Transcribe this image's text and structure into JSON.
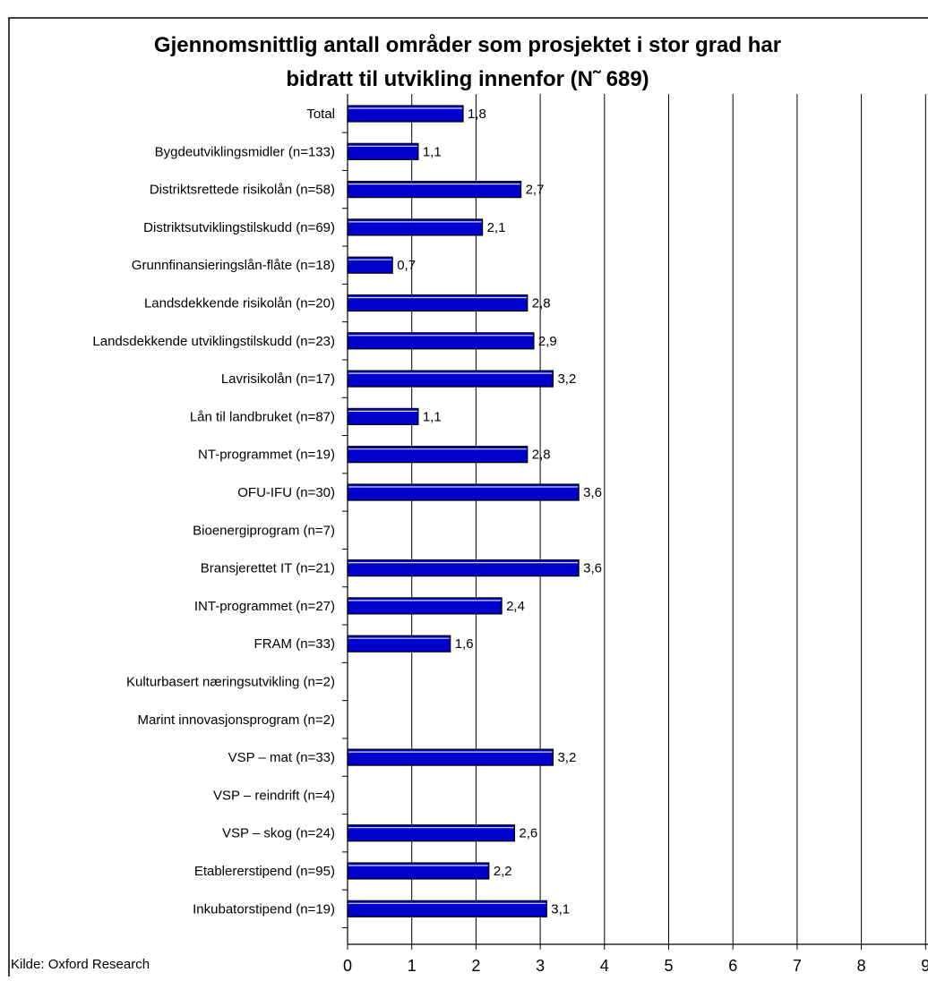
{
  "chart_data": {
    "type": "bar",
    "orientation": "horizontal",
    "title_line1": "Gjennomsnittlig antall områder som prosjektet i stor grad har",
    "title_line2": "bidratt til utvikling innenfor (N˜ 689)",
    "source": "Kilde: Oxford Research",
    "xlim": [
      0,
      9
    ],
    "xticks": [
      "0",
      "1",
      "2",
      "3",
      "4",
      "5",
      "6",
      "7",
      "8",
      "9"
    ],
    "grid": "vertical gridlines",
    "legend": "none",
    "bar_color": "#0000cc",
    "categories": [
      "Total",
      "Bygdeutviklingsmidler (n=133)",
      "Distriktsrettede risikolån (n=58)",
      "Distriktsutviklingstilskudd (n=69)",
      "Grunnfinansieringslån-flåte (n=18)",
      "Landsdekkende risikolån (n=20)",
      "Landsdekkende utviklingstilskudd (n=23)",
      "Lavrisikolån (n=17)",
      "Lån til landbruket (n=87)",
      "NT-programmet (n=19)",
      "OFU-IFU (n=30)",
      "Bioenergiprogram (n=7)",
      "Bransjerettet IT (n=21)",
      "INT-programmet (n=27)",
      "FRAM (n=33)",
      "Kulturbasert næringsutvikling (n=2)",
      "Marint innovasjonsprogram (n=2)",
      "VSP – mat (n=33)",
      "VSP – reindrift (n=4)",
      "VSP – skog (n=24)",
      "Etablererstipend (n=95)",
      "Inkubatorstipend (n=19)"
    ],
    "values": [
      1.8,
      1.1,
      2.7,
      2.1,
      0.7,
      2.8,
      2.9,
      3.2,
      1.1,
      2.8,
      3.6,
      null,
      3.6,
      2.4,
      1.6,
      null,
      null,
      3.2,
      null,
      2.6,
      2.2,
      3.1
    ],
    "value_labels": [
      "1,8",
      "1,1",
      "2,7",
      "2,1",
      "0,7",
      "2,8",
      "2,9",
      "3,2",
      "1,1",
      "2,8",
      "3,6",
      "",
      "3,6",
      "2,4",
      "1,6",
      "",
      "",
      "3,2",
      "",
      "2,6",
      "2,2",
      "3,1"
    ]
  }
}
